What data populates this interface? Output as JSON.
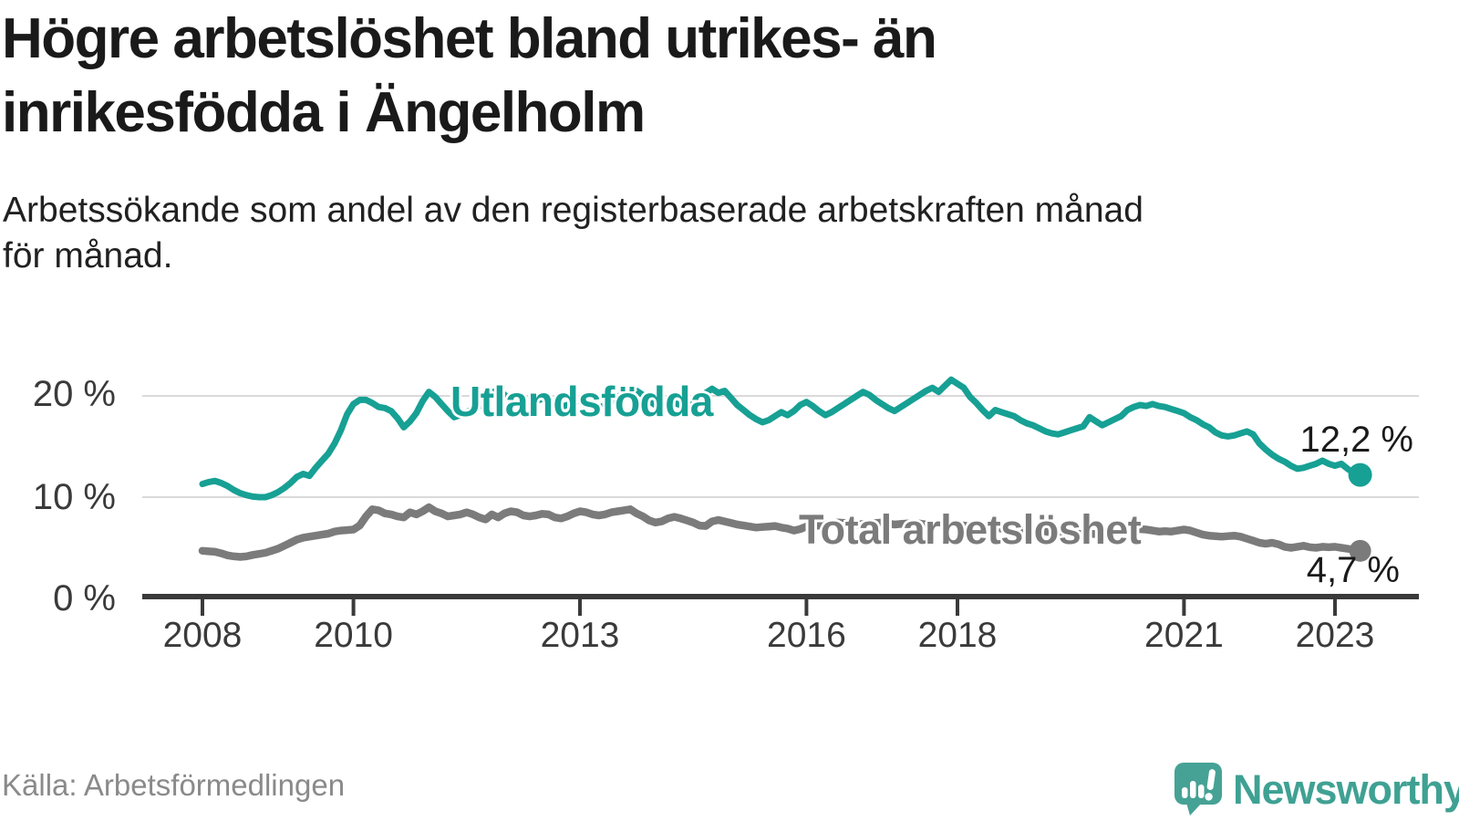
{
  "header": {
    "title_line1": "Högre arbetslöshet bland utrikes- än",
    "title_line2": "inrikesfödda i Ängelholm",
    "subtitle_line1": "Arbetssökande som andel av den registerbaserade arbetskraften månad",
    "subtitle_line2": "för månad."
  },
  "footer": {
    "source": "Källa: Arbetsförmedlingen",
    "brand": "Newsworthy"
  },
  "colors": {
    "teal": "#17a094",
    "gray": "#7b7b7b",
    "axis": "#3a3a3a",
    "grid": "#d9d9d9",
    "text_dark": "#1a1a1a",
    "source_gray": "#8a8a8a",
    "logo_teal": "#3fa193"
  },
  "chart_data": {
    "type": "line",
    "title": "Högre arbetslöshet bland utrikes- än inrikesfödda i Ängelholm",
    "subtitle": "Arbetssökande som andel av den registerbaserade arbetskraften månad för månad.",
    "xlabel": "",
    "ylabel": "",
    "grid": "horizontal",
    "legend_position": "inline-labels",
    "x_axis": {
      "start_year": 2008,
      "points_per_year": 12,
      "ticks": [
        2008,
        2010,
        2013,
        2016,
        2018,
        2021,
        2023
      ],
      "tick_labels": [
        "2008",
        "2010",
        "2013",
        "2016",
        "2018",
        "2021",
        "2023"
      ]
    },
    "y_axis": {
      "ticks": [
        0,
        10,
        20
      ],
      "tick_labels": [
        "0 %",
        "10 %",
        "20 %"
      ],
      "range": [
        0,
        22.5
      ],
      "unit": "%"
    },
    "series": [
      {
        "name": "Utlandsfödda",
        "color": "#17a094",
        "end_value": 12.2,
        "end_label": "12,2 %",
        "values": [
          11.3,
          11.5,
          11.6,
          11.4,
          11.1,
          10.7,
          10.4,
          10.2,
          10.05,
          10.0,
          10.0,
          10.2,
          10.5,
          10.9,
          11.4,
          12.0,
          12.3,
          12.1,
          12.9,
          13.6,
          14.3,
          15.3,
          16.6,
          18.2,
          19.2,
          19.6,
          19.6,
          19.3,
          18.9,
          18.8,
          18.5,
          17.8,
          16.9,
          17.5,
          18.3,
          19.5,
          20.4,
          19.9,
          19.2,
          18.5,
          17.9,
          18.1,
          18.4,
          18.7,
          19.0,
          19.5,
          20.3,
          20.6,
          20.1,
          19.6,
          19.2,
          19.0,
          19.3,
          19.5,
          19.7,
          19.4,
          19.1,
          18.9,
          19.1,
          19.4,
          19.6,
          19.3,
          19.0,
          18.8,
          19.1,
          19.4,
          19.9,
          20.2,
          20.0,
          20.5,
          20.1,
          19.5,
          19.1,
          18.8,
          19.0,
          19.3,
          19.1,
          18.9,
          19.3,
          19.7,
          20.3,
          20.7,
          20.3,
          20.5,
          19.8,
          19.1,
          18.6,
          18.1,
          17.7,
          17.4,
          17.6,
          18.0,
          18.4,
          18.1,
          18.5,
          19.1,
          19.4,
          19.0,
          18.5,
          18.1,
          18.4,
          18.8,
          19.2,
          19.6,
          20.0,
          20.4,
          20.1,
          19.6,
          19.2,
          18.8,
          18.5,
          18.9,
          19.3,
          19.7,
          20.1,
          20.5,
          20.8,
          20.4,
          21.0,
          21.6,
          21.2,
          20.8,
          19.9,
          19.3,
          18.6,
          18.0,
          18.6,
          18.4,
          18.2,
          18.0,
          17.6,
          17.3,
          17.1,
          16.8,
          16.5,
          16.3,
          16.2,
          16.4,
          16.6,
          16.8,
          17.0,
          17.9,
          17.5,
          17.1,
          17.4,
          17.7,
          18.0,
          18.6,
          18.9,
          19.1,
          19.0,
          19.2,
          19.0,
          18.9,
          18.7,
          18.5,
          18.3,
          17.9,
          17.6,
          17.2,
          16.9,
          16.4,
          16.1,
          16.0,
          16.1,
          16.3,
          16.5,
          16.2,
          15.3,
          14.7,
          14.2,
          13.8,
          13.5,
          13.1,
          12.8,
          12.9,
          13.1,
          13.3,
          13.6,
          13.3,
          13.1,
          13.3,
          12.8,
          12.4,
          12.2
        ]
      },
      {
        "name": "Total arbetslöshet",
        "color": "#7b7b7b",
        "end_value": 4.7,
        "end_label": "4,7 %",
        "values": [
          4.7,
          4.65,
          4.6,
          4.45,
          4.25,
          4.15,
          4.1,
          4.15,
          4.3,
          4.4,
          4.5,
          4.7,
          4.9,
          5.2,
          5.5,
          5.8,
          6.0,
          6.1,
          6.2,
          6.3,
          6.4,
          6.6,
          6.7,
          6.75,
          6.8,
          7.2,
          8.1,
          8.8,
          8.7,
          8.4,
          8.3,
          8.1,
          8.0,
          8.5,
          8.3,
          8.6,
          9.0,
          8.6,
          8.4,
          8.1,
          8.2,
          8.3,
          8.5,
          8.3,
          8.0,
          7.8,
          8.3,
          8.0,
          8.4,
          8.6,
          8.5,
          8.2,
          8.1,
          8.2,
          8.35,
          8.3,
          8.0,
          7.9,
          8.1,
          8.4,
          8.6,
          8.5,
          8.3,
          8.2,
          8.3,
          8.5,
          8.6,
          8.7,
          8.8,
          8.4,
          8.1,
          7.7,
          7.5,
          7.6,
          7.9,
          8.05,
          7.9,
          7.7,
          7.5,
          7.2,
          7.15,
          7.6,
          7.75,
          7.6,
          7.45,
          7.3,
          7.2,
          7.1,
          7.0,
          7.05,
          7.1,
          7.15,
          7.0,
          6.9,
          6.7,
          6.85,
          7.1,
          7.15,
          7.2,
          7.3,
          7.4,
          7.5,
          7.45,
          7.35,
          7.3,
          7.35,
          7.4,
          7.45,
          7.5,
          7.4,
          7.3,
          7.35,
          7.4,
          7.45,
          7.4,
          7.3,
          7.25,
          7.3,
          7.35,
          7.4,
          7.3,
          7.2,
          7.1,
          7.0,
          6.95,
          6.9,
          6.95,
          6.9,
          6.85,
          6.8,
          6.75,
          6.7,
          6.75,
          6.7,
          6.6,
          6.5,
          6.45,
          6.4,
          6.45,
          6.4,
          6.35,
          6.4,
          6.35,
          6.3,
          6.4,
          6.5,
          6.6,
          6.7,
          6.8,
          6.85,
          6.8,
          6.7,
          6.6,
          6.65,
          6.6,
          6.7,
          6.8,
          6.7,
          6.5,
          6.3,
          6.2,
          6.15,
          6.1,
          6.15,
          6.2,
          6.1,
          5.9,
          5.7,
          5.5,
          5.4,
          5.5,
          5.35,
          5.1,
          5.0,
          5.1,
          5.2,
          5.05,
          5.0,
          5.1,
          5.05,
          5.1,
          5.0,
          4.9,
          4.8,
          4.7
        ]
      }
    ]
  }
}
